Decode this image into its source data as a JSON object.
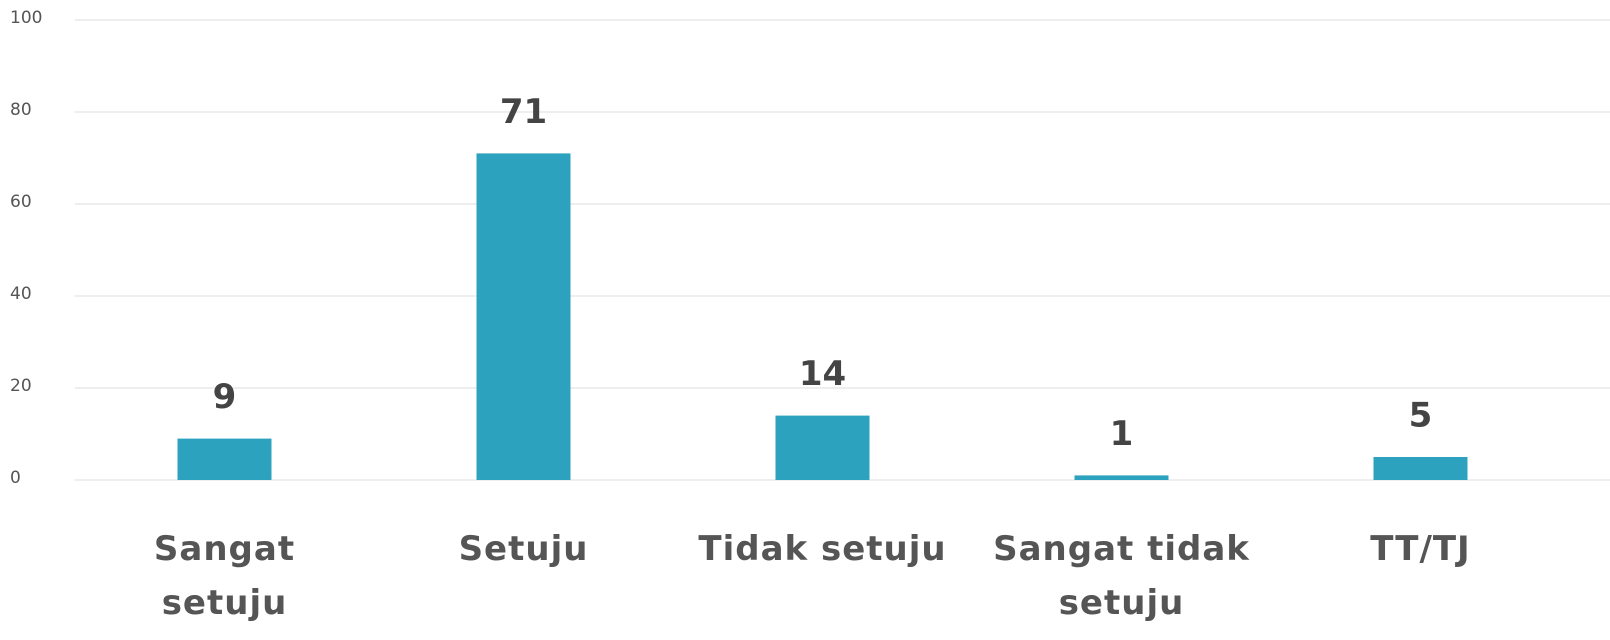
{
  "chart_data": {
    "type": "bar",
    "categories": [
      "Sangat setuju",
      "Setuju",
      "Tidak setuju",
      "Sangat tidak setuju",
      "TT/TJ"
    ],
    "values": [
      9,
      71,
      14,
      1,
      5
    ],
    "color": "#2ca2bf",
    "ylim": [
      0,
      100
    ],
    "yticks": [
      0,
      20,
      40,
      60,
      80,
      100
    ],
    "grid": true
  }
}
